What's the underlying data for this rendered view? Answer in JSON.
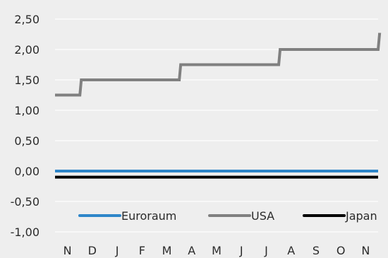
{
  "chart_data": {
    "type": "line",
    "step": true,
    "title": "",
    "xlabel": "",
    "ylabel": "",
    "ylim": [
      -1.0,
      2.5
    ],
    "yticks": [
      "2,50",
      "2,00",
      "1,50",
      "1,00",
      "0,50",
      "0,00",
      "-0,50",
      "-1,00"
    ],
    "ytick_values": [
      2.5,
      2.0,
      1.5,
      1.0,
      0.5,
      0.0,
      -0.5,
      -1.0
    ],
    "categories": [
      "N",
      "D",
      "J",
      "F",
      "M",
      "A",
      "M",
      "J",
      "J",
      "A",
      "S",
      "O",
      "N"
    ],
    "grid": true,
    "legend_position": "bottom",
    "series": [
      {
        "name": "Euroraum",
        "color": "#2e86c9",
        "values": [
          0.0,
          0.0,
          0.0,
          0.0,
          0.0,
          0.0,
          0.0,
          0.0,
          0.0,
          0.0,
          0.0,
          0.0,
          0.0
        ]
      },
      {
        "name": "USA",
        "color": "#808080",
        "values": [
          1.25,
          1.5,
          1.5,
          1.5,
          1.75,
          1.75,
          1.75,
          2.0,
          2.0,
          2.0,
          2.25,
          2.25,
          2.25
        ],
        "changes": [
          {
            "x": 1.0,
            "to": 1.5
          },
          {
            "x": 5.0,
            "to": 1.75
          },
          {
            "x": 9.0,
            "to": 2.0
          },
          {
            "x": 13.0,
            "to": 2.25
          }
        ]
      },
      {
        "name": "Japan",
        "color": "#000000",
        "values": [
          -0.1,
          -0.1,
          -0.1,
          -0.1,
          -0.1,
          -0.1,
          -0.1,
          -0.1,
          -0.1,
          -0.1,
          -0.1,
          -0.1,
          -0.1
        ]
      }
    ]
  }
}
